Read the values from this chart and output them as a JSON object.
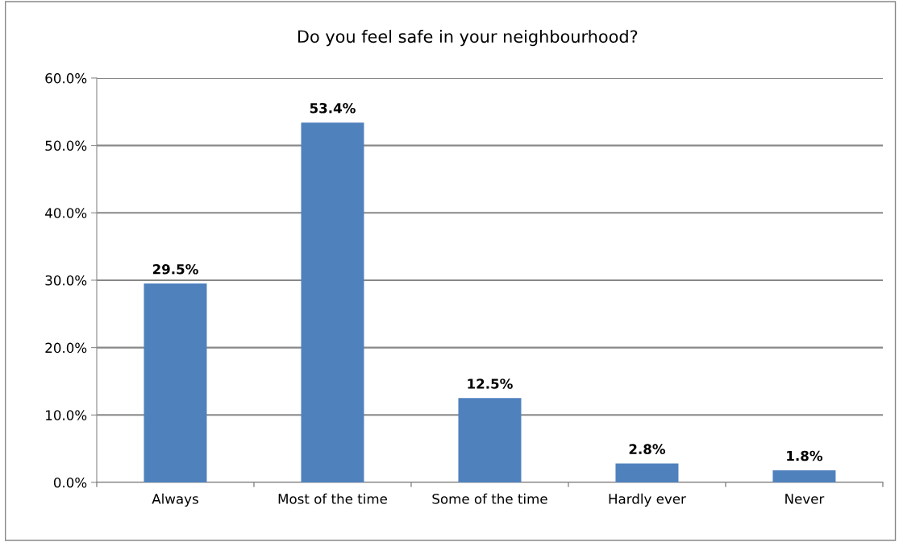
{
  "chart_data": {
    "type": "bar",
    "title": "Do you feel safe in your neighbourhood?",
    "categories": [
      "Always",
      "Most of the time",
      "Some of the time",
      "Hardly ever",
      "Never"
    ],
    "values": [
      29.5,
      53.4,
      12.5,
      2.8,
      1.8
    ],
    "value_labels": [
      "29.5%",
      "53.4%",
      "12.5%",
      "2.8%",
      "1.8%"
    ],
    "color": "#4f81bd",
    "ylim": [
      0,
      60
    ],
    "yticks": [
      {
        "value": 0,
        "label": "0.0%"
      },
      {
        "value": 10,
        "label": "10.0%"
      },
      {
        "value": 20,
        "label": "20.0%"
      },
      {
        "value": 30,
        "label": "30.0%"
      },
      {
        "value": 40,
        "label": "40.0%"
      },
      {
        "value": 50,
        "label": "50.0%"
      },
      {
        "value": 60,
        "label": "60.0%"
      }
    ],
    "grid": "y"
  }
}
